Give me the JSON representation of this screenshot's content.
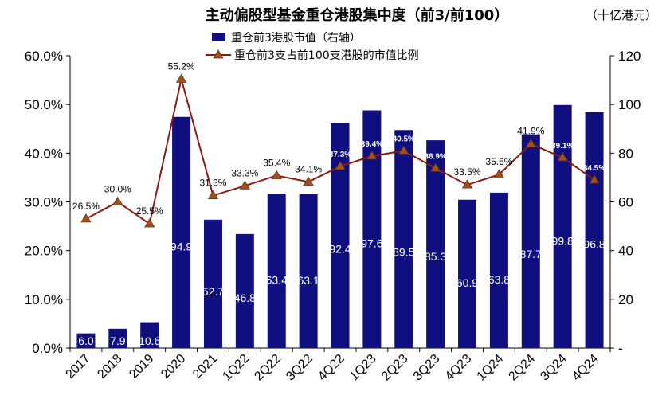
{
  "chart_data": {
    "type": "bar+line",
    "title": "主动偏股型基金重仓港股集中度（前3/前100）",
    "unit_label": "（十亿港元）",
    "categories": [
      "2017",
      "2018",
      "2019",
      "2020",
      "2021",
      "1Q22",
      "2Q22",
      "3Q22",
      "4Q22",
      "1Q23",
      "2Q23",
      "3Q23",
      "4Q23",
      "1Q24",
      "2Q24",
      "3Q24",
      "4Q24"
    ],
    "series": [
      {
        "name": "重仓前3港股市值（右轴）",
        "type": "bar",
        "axis": "right",
        "color": "#0f0f80",
        "values": [
          6.0,
          7.9,
          10.6,
          94.9,
          52.7,
          46.8,
          63.4,
          63.1,
          92.4,
          97.6,
          89.5,
          85.3,
          60.9,
          63.8,
          87.7,
          99.8,
          96.8
        ],
        "value_labels": [
          "6.0",
          "7.9",
          "10.6",
          "94.9",
          "52.7",
          "46.8",
          "63.4",
          "63.1",
          "92.4",
          "97.6",
          "89.5",
          "85.3",
          "60.9",
          "63.8",
          "87.7",
          "99.8",
          "96.8"
        ]
      },
      {
        "name": "重仓前3支占前100支港股的市值比例",
        "type": "line",
        "axis": "left",
        "color": "#8b1a10",
        "marker_color": "#a0521d",
        "values": [
          26.5,
          30.0,
          25.5,
          55.2,
          31.3,
          33.3,
          35.4,
          34.1,
          37.3,
          39.4,
          40.5,
          36.9,
          33.5,
          35.6,
          41.9,
          39.1,
          34.5
        ],
        "value_labels": [
          "26.5%",
          "30.0%",
          "25.5%",
          "55.2%",
          "31.3%",
          "33.3%",
          "35.4%",
          "34.1%",
          "37.3%",
          "39.4%",
          "40.5%",
          "36.9%",
          "33.5%",
          "35.6%",
          "41.9%",
          "39.1%",
          "34.5%"
        ]
      }
    ],
    "left_axis": {
      "min": 0,
      "max": 60,
      "step": 10,
      "tick_labels": [
        "0.0%",
        "10.0%",
        "20.0%",
        "30.0%",
        "40.0%",
        "50.0%",
        "60.0%"
      ]
    },
    "right_axis": {
      "min": 0,
      "max": 120,
      "step": 20,
      "tick_labels": [
        "-",
        "20",
        "40",
        "60",
        "80",
        "100",
        "120"
      ]
    },
    "legend": [
      "重仓前3港股市值（右轴）",
      "重仓前3支占前100支港股的市值比例"
    ]
  }
}
